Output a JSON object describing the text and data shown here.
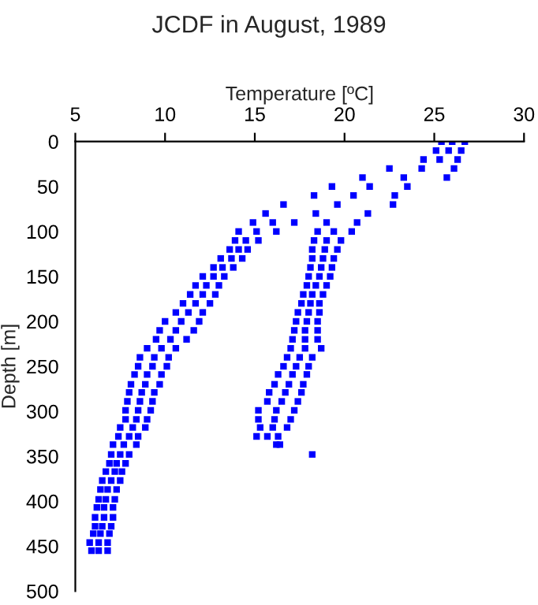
{
  "chart_data": {
    "type": "scatter",
    "title": "JCDF in August, 1989",
    "xlabel": "Temperature [ºC]",
    "ylabel": "Depth [m]",
    "xlim": [
      5,
      30
    ],
    "xticks": [
      5,
      10,
      15,
      20,
      25,
      30
    ],
    "ylim": [
      500,
      0
    ],
    "yticks": [
      0,
      50,
      100,
      150,
      200,
      250,
      300,
      350,
      400,
      450,
      500
    ],
    "grid": false,
    "legend": false,
    "marker": "square",
    "series": [
      {
        "color": "#0000ff",
        "x": [
          25.4,
          26.0,
          26.7,
          25.1,
          25.8,
          26.5,
          24.4,
          25.3,
          26.3,
          22.5,
          24.3,
          26.1,
          21.0,
          23.3,
          25.7,
          19.3,
          21.4,
          23.5,
          18.3,
          20.5,
          22.8,
          16.6,
          19.6,
          22.7,
          15.6,
          18.4,
          21.3,
          14.9,
          16.0,
          17.2,
          19.0,
          20.7,
          14.1,
          15.1,
          16.2,
          18.5,
          19.4,
          20.4,
          13.9,
          14.5,
          15.2,
          18.3,
          19.0,
          19.8,
          13.6,
          14.1,
          14.6,
          18.2,
          18.9,
          19.6,
          13.1,
          13.7,
          14.3,
          18.2,
          18.8,
          19.4,
          12.7,
          13.2,
          13.8,
          18.1,
          18.7,
          19.3,
          12.1,
          12.7,
          13.3,
          18.0,
          18.6,
          19.2,
          11.7,
          12.3,
          13.0,
          17.9,
          18.4,
          19.0,
          11.4,
          12.1,
          12.8,
          17.7,
          18.2,
          18.8,
          11.0,
          11.7,
          12.5,
          17.6,
          18.1,
          18.6,
          10.6,
          11.3,
          12.1,
          17.4,
          18.0,
          18.6,
          10.0,
          10.9,
          11.9,
          17.3,
          17.9,
          18.5,
          9.7,
          10.6,
          11.6,
          17.2,
          17.8,
          18.5,
          9.5,
          10.3,
          11.2,
          17.1,
          17.8,
          18.5,
          9.0,
          9.8,
          10.6,
          17.0,
          17.8,
          18.7,
          8.6,
          9.4,
          10.2,
          16.8,
          17.5,
          18.2,
          8.5,
          9.3,
          10.1,
          16.6,
          17.3,
          18.0,
          8.3,
          9.0,
          9.8,
          16.3,
          17.1,
          17.9,
          8.1,
          8.9,
          9.7,
          16.1,
          16.9,
          17.7,
          8.0,
          8.7,
          9.4,
          15.8,
          16.7,
          17.6,
          7.9,
          8.6,
          9.3,
          15.7,
          16.5,
          17.4,
          7.8,
          8.5,
          9.2,
          15.2,
          16.2,
          17.2,
          7.8,
          8.4,
          9.0,
          15.2,
          16.1,
          17.0,
          7.5,
          8.2,
          8.9,
          15.3,
          16.0,
          16.8,
          7.4,
          8.0,
          8.5,
          15.1,
          15.7,
          16.3,
          7.1,
          7.7,
          8.4,
          16.2,
          16.4,
          7.0,
          7.5,
          8.0,
          18.2,
          6.9,
          7.3,
          7.8,
          6.7,
          7.2,
          7.6,
          6.5,
          7.0,
          7.5,
          6.4,
          6.8,
          7.3,
          6.3,
          6.7,
          7.2,
          6.2,
          6.6,
          7.1,
          6.1,
          6.6,
          7.1,
          6.1,
          6.5,
          7.0,
          6.0,
          6.4,
          6.9,
          5.8,
          6.3,
          6.8,
          5.9,
          6.3,
          6.8
        ],
        "values": [
          0,
          0,
          0,
          10,
          10,
          10,
          20,
          20,
          20,
          30,
          30,
          30,
          40,
          40,
          40,
          50,
          50,
          50,
          60,
          60,
          60,
          70,
          70,
          70,
          80,
          80,
          80,
          90,
          90,
          90,
          90,
          90,
          100,
          100,
          100,
          100,
          100,
          100,
          110,
          110,
          110,
          110,
          110,
          110,
          120,
          120,
          120,
          120,
          120,
          120,
          130,
          130,
          130,
          130,
          130,
          130,
          140,
          140,
          140,
          140,
          140,
          140,
          150,
          150,
          150,
          150,
          150,
          150,
          160,
          160,
          160,
          160,
          160,
          160,
          170,
          170,
          170,
          170,
          170,
          170,
          180,
          180,
          180,
          180,
          180,
          180,
          190,
          190,
          190,
          190,
          190,
          190,
          200,
          200,
          200,
          200,
          200,
          200,
          210,
          210,
          210,
          210,
          210,
          210,
          220,
          220,
          220,
          220,
          220,
          220,
          230,
          230,
          230,
          230,
          230,
          230,
          240,
          240,
          240,
          240,
          240,
          240,
          250,
          250,
          250,
          250,
          250,
          250,
          259,
          259,
          259,
          259,
          259,
          259,
          270,
          270,
          270,
          270,
          270,
          270,
          279,
          279,
          279,
          279,
          279,
          279,
          289,
          289,
          289,
          289,
          289,
          289,
          299,
          299,
          299,
          299,
          299,
          299,
          309,
          309,
          309,
          309,
          309,
          309,
          318,
          318,
          318,
          318,
          318,
          318,
          328,
          328,
          328,
          328,
          328,
          328,
          337,
          337,
          337,
          337,
          337,
          348,
          348,
          348,
          348,
          358,
          358,
          358,
          367,
          367,
          367,
          377,
          377,
          377,
          387,
          387,
          387,
          398,
          398,
          398,
          407,
          407,
          407,
          418,
          418,
          418,
          428,
          428,
          428,
          436,
          436,
          436,
          446,
          446,
          446,
          455,
          455,
          455
        ]
      }
    ]
  }
}
